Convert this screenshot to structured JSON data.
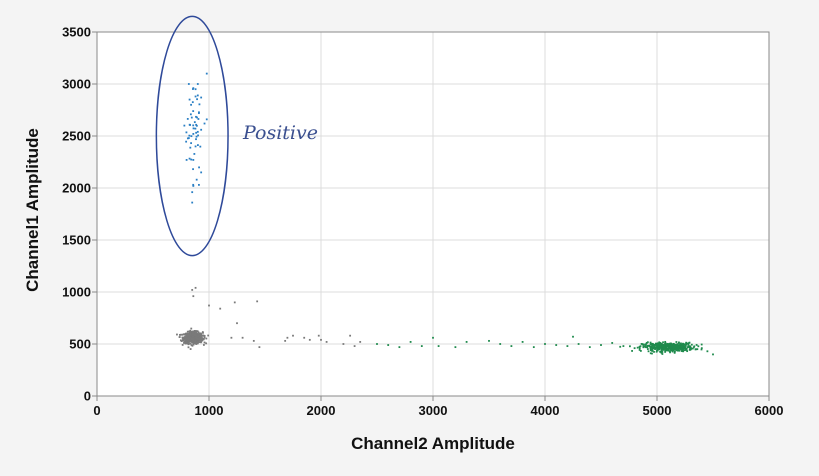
{
  "chart_data": {
    "type": "scatter",
    "xlabel": "Channel2 Amplitude",
    "ylabel": "Channel1 Amplitude",
    "xlim": [
      0,
      6000
    ],
    "ylim": [
      0,
      3500
    ],
    "xticks": [
      "0",
      "1000",
      "2000",
      "3000",
      "4000",
      "5000",
      "6000"
    ],
    "yticks": [
      "0",
      "500",
      "1000",
      "1500",
      "2000",
      "2500",
      "3000",
      "3500"
    ],
    "grid": true,
    "legend": "none",
    "annotation": {
      "text": "Positive",
      "ellipse": {
        "cx": 850,
        "cy": 2500,
        "rx": 320,
        "ry": 1150
      }
    },
    "series": [
      {
        "color": "#2a7fc4",
        "cluster": {
          "x_center": 870,
          "y_center": 2550,
          "x_spread": 60,
          "y_spread": 330,
          "count": 40
        },
        "points": [
          [
            820,
            3000
          ],
          [
            900,
            3000
          ],
          [
            860,
            2960
          ],
          [
            980,
            3100
          ],
          [
            880,
            2880
          ],
          [
            930,
            2870
          ],
          [
            840,
            2800
          ],
          [
            910,
            2720
          ],
          [
            980,
            2660
          ],
          [
            960,
            2620
          ],
          [
            930,
            2560
          ],
          [
            900,
            2540
          ],
          [
            860,
            2520
          ],
          [
            780,
            2600
          ],
          [
            820,
            2480
          ],
          [
            880,
            2400
          ],
          [
            860,
            2270
          ],
          [
            800,
            2270
          ],
          [
            930,
            2150
          ],
          [
            890,
            2080
          ],
          [
            910,
            2030
          ],
          [
            860,
            2020
          ],
          [
            850,
            1960
          ],
          [
            850,
            1860
          ],
          [
            900,
            2890
          ],
          [
            880,
            2950
          ]
        ]
      },
      {
        "color": "#7a7a7a",
        "cluster": {
          "x_center": 860,
          "y_center": 560,
          "x_spread": 70,
          "y_spread": 45,
          "count": 700
        },
        "points": [
          [
            850,
            1020
          ],
          [
            880,
            1040
          ],
          [
            860,
            960
          ],
          [
            1000,
            870
          ],
          [
            1100,
            840
          ],
          [
            1230,
            900
          ],
          [
            1430,
            910
          ],
          [
            1250,
            700
          ],
          [
            1300,
            560
          ],
          [
            1200,
            560
          ],
          [
            1400,
            530
          ],
          [
            1450,
            470
          ],
          [
            1700,
            560
          ],
          [
            1680,
            530
          ],
          [
            1750,
            580
          ],
          [
            1850,
            560
          ],
          [
            1900,
            540
          ],
          [
            1980,
            580
          ],
          [
            2000,
            540
          ],
          [
            2050,
            520
          ],
          [
            2200,
            500
          ],
          [
            2260,
            580
          ],
          [
            2300,
            480
          ],
          [
            2350,
            520
          ]
        ]
      },
      {
        "color": "#1f8a4c",
        "cluster": {
          "x_center": 5100,
          "y_center": 470,
          "x_spread": 190,
          "y_spread": 35,
          "count": 420
        },
        "points": [
          [
            2500,
            500
          ],
          [
            2600,
            490
          ],
          [
            2700,
            470
          ],
          [
            2800,
            520
          ],
          [
            2900,
            480
          ],
          [
            3000,
            560
          ],
          [
            3050,
            480
          ],
          [
            3200,
            470
          ],
          [
            3300,
            520
          ],
          [
            3500,
            530
          ],
          [
            3600,
            500
          ],
          [
            3700,
            480
          ],
          [
            3800,
            520
          ],
          [
            3900,
            470
          ],
          [
            4000,
            500
          ],
          [
            4100,
            490
          ],
          [
            4200,
            480
          ],
          [
            4250,
            570
          ],
          [
            4300,
            500
          ],
          [
            4400,
            470
          ],
          [
            4500,
            490
          ],
          [
            4600,
            510
          ],
          [
            4700,
            480
          ],
          [
            4800,
            460
          ],
          [
            5500,
            400
          ],
          [
            5450,
            430
          ],
          [
            5400,
            460
          ]
        ]
      }
    ]
  }
}
